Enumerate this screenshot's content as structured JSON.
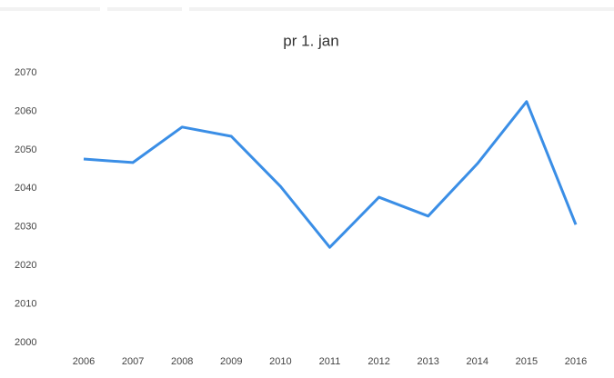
{
  "chart_data": {
    "type": "line",
    "title": "pr 1. jan",
    "categories": [
      "2006",
      "2007",
      "2008",
      "2009",
      "2010",
      "2011",
      "2012",
      "2013",
      "2014",
      "2015",
      "2016"
    ],
    "series": [
      {
        "color": "#3a8ee6",
        "values": [
          2047.6,
          2046.7,
          2055.9,
          2053.5,
          2040.5,
          2024.7,
          2037.7,
          2032.8,
          2046.4,
          2062.5,
          2030.6
        ]
      }
    ],
    "ylim": [
      2000,
      2070
    ],
    "yticks": [
      2000,
      2010,
      2020,
      2030,
      2040,
      2050,
      2060,
      2070
    ],
    "grid": false
  }
}
